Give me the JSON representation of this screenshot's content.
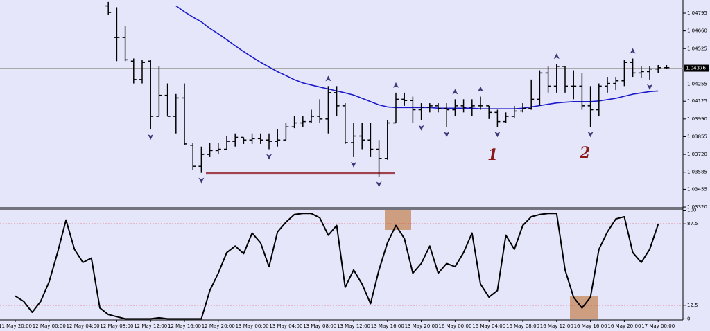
{
  "chart_data": {
    "type": "ohlc",
    "categories": [
      "11 May 20:00",
      null,
      null,
      null,
      "12 May 00:00",
      null,
      null,
      null,
      "12 May 04:00",
      null,
      null,
      null,
      "12 May 08:00",
      null,
      null,
      null,
      "12 May 12:00",
      null,
      null,
      null,
      "12 May 16:00",
      null,
      null,
      null,
      "12 May 20:00",
      null,
      null,
      null,
      "13 May 00:00",
      null,
      null,
      null,
      "13 May 04:00",
      null,
      null,
      null,
      "13 May 08:00",
      null,
      null,
      null,
      "13 May 12:00",
      null,
      null,
      null,
      "13 May 16:00",
      null,
      null,
      null,
      "13 May 20:00",
      null,
      null,
      null,
      "16 May 00:00",
      null,
      null,
      null,
      "16 May 04:00",
      null,
      null,
      null,
      "16 May 08:00",
      null,
      null,
      null,
      "16 May 12:00",
      null,
      null,
      null,
      "16 May 16:00",
      null,
      null,
      null,
      "16 May 20:00",
      null,
      null,
      null,
      "17 May 00:00",
      null
    ],
    "open": [
      null,
      null,
      null,
      null,
      null,
      null,
      null,
      null,
      null,
      null,
      null,
      1.0485,
      1.0461,
      1.0461,
      1.0443,
      1.0429,
      1.0443,
      1.0401,
      1.0417,
      1.0401,
      1.0415,
      1.0379,
      1.0363,
      1.0372,
      1.0375,
      1.0376,
      1.0382,
      1.0385,
      1.0383,
      1.0384,
      1.0383,
      1.0382,
      1.0383,
      1.0393,
      1.0396,
      1.0397,
      1.0401,
      1.0399,
      1.0419,
      1.0409,
      1.0381,
      1.0386,
      1.0383,
      1.0376,
      1.0369,
      1.0396,
      1.0414,
      1.0413,
      1.0406,
      1.0408,
      1.0409,
      1.0407,
      1.0406,
      1.0409,
      1.0408,
      1.0409,
      1.0409,
      1.0404,
      1.0397,
      1.0401,
      1.0405,
      1.0407,
      1.0414,
      1.0434,
      1.0424,
      1.0439,
      1.0424,
      1.0424,
      1.0409,
      1.0406,
      1.0424,
      1.0426,
      1.0428,
      1.0442,
      1.0434,
      1.0435,
      1.0437,
      1.0438
    ],
    "high": [
      null,
      null,
      null,
      null,
      null,
      null,
      null,
      null,
      null,
      null,
      null,
      1.0488,
      1.0484,
      1.047,
      1.0445,
      1.0444,
      1.0444,
      1.0439,
      1.0426,
      1.0418,
      1.0426,
      1.0381,
      1.0378,
      1.0381,
      1.0381,
      1.0386,
      1.0388,
      1.0385,
      1.0388,
      1.0388,
      1.0388,
      1.0391,
      1.0396,
      1.0401,
      1.0401,
      1.0406,
      1.0414,
      1.0424,
      1.0424,
      1.0411,
      1.0396,
      1.0396,
      1.0396,
      1.0383,
      1.0398,
      1.0419,
      1.0419,
      1.0416,
      1.0411,
      1.0411,
      1.0411,
      1.0411,
      1.0414,
      1.0414,
      1.0414,
      1.0416,
      1.0409,
      1.0406,
      1.0404,
      1.0409,
      1.0411,
      1.0429,
      1.0436,
      1.0439,
      1.0441,
      1.0439,
      1.0436,
      1.0434,
      1.0424,
      1.0426,
      1.0431,
      1.0431,
      1.0444,
      1.0445,
      1.0439,
      1.0439,
      1.044,
      1.044
    ],
    "low": [
      null,
      null,
      null,
      null,
      null,
      null,
      null,
      null,
      null,
      null,
      null,
      1.0478,
      1.0443,
      1.0443,
      1.0426,
      1.0426,
      1.0391,
      1.0401,
      1.0401,
      1.0388,
      1.0379,
      1.036,
      1.0358,
      1.037,
      1.0372,
      1.0376,
      1.0378,
      1.038,
      1.038,
      1.038,
      1.0376,
      1.0378,
      1.0383,
      1.0392,
      1.0393,
      1.0396,
      1.0396,
      1.0388,
      1.0401,
      1.038,
      1.037,
      1.0376,
      1.037,
      1.0355,
      1.0368,
      1.0396,
      1.0409,
      1.0396,
      1.0398,
      1.0404,
      1.0404,
      1.0393,
      1.0401,
      1.0404,
      1.0401,
      1.0406,
      1.0399,
      1.0393,
      1.0396,
      1.04,
      1.0404,
      1.0406,
      1.0409,
      1.0419,
      1.0419,
      1.0419,
      1.0414,
      1.0406,
      1.0393,
      1.0401,
      1.0419,
      1.0421,
      1.0424,
      1.0431,
      1.043,
      1.0429,
      1.0434,
      1.0437
    ],
    "close": [
      null,
      null,
      null,
      null,
      null,
      null,
      null,
      null,
      null,
      null,
      null,
      1.048,
      1.0461,
      1.0444,
      1.0429,
      1.0442,
      1.0401,
      1.0417,
      1.0401,
      1.0415,
      1.038,
      1.0363,
      1.0372,
      1.0375,
      1.0376,
      1.0382,
      1.0385,
      1.0383,
      1.0384,
      1.0383,
      1.0382,
      1.0383,
      1.0393,
      1.0396,
      1.0397,
      1.0401,
      1.0399,
      1.0419,
      1.0409,
      1.0381,
      1.0386,
      1.0383,
      1.0376,
      1.0369,
      1.0396,
      1.0414,
      1.0413,
      1.0406,
      1.0408,
      1.0409,
      1.0407,
      1.0406,
      1.0409,
      1.0408,
      1.0409,
      1.0409,
      1.0404,
      1.0397,
      1.0401,
      1.0405,
      1.0407,
      1.0414,
      1.0434,
      1.0424,
      1.0439,
      1.0424,
      1.0424,
      1.0409,
      1.0406,
      1.0424,
      1.0426,
      1.0428,
      1.0442,
      1.0434,
      1.0435,
      1.0437,
      1.0438,
      1.0438
    ],
    "bar_color": "#000000",
    "moving_average": {
      "color": "#1a1ac8",
      "values": [
        null,
        null,
        null,
        null,
        null,
        null,
        null,
        null,
        null,
        null,
        null,
        null,
        null,
        null,
        null,
        null,
        null,
        null,
        null,
        1.04851,
        1.04805,
        1.04765,
        1.04729,
        1.04679,
        1.04638,
        1.04593,
        1.04547,
        1.04502,
        1.04461,
        1.04421,
        1.04385,
        1.0435,
        1.0432,
        1.04289,
        1.04264,
        1.04248,
        1.04233,
        1.04218,
        1.04203,
        1.04188,
        1.04172,
        1.04147,
        1.04122,
        1.04097,
        1.04082,
        1.04077,
        1.04077,
        1.04077,
        1.04077,
        1.04077,
        1.04072,
        1.04072,
        1.04072,
        1.04072,
        1.04072,
        1.04067,
        1.04067,
        1.04067,
        1.04067,
        1.04067,
        1.04072,
        1.04082,
        1.04092,
        1.04102,
        1.04112,
        1.04117,
        1.04122,
        1.04122,
        1.04122,
        1.04127,
        1.04137,
        1.04147,
        1.04163,
        1.04178,
        1.04188,
        1.04198,
        1.04203,
        null
      ]
    },
    "fractal_color": "#3a3a78",
    "fractals_up": [
      null,
      null,
      null,
      null,
      null,
      null,
      null,
      null,
      null,
      null,
      null,
      null,
      null,
      null,
      null,
      null,
      null,
      null,
      null,
      null,
      null,
      null,
      null,
      null,
      null,
      null,
      null,
      null,
      null,
      null,
      null,
      null,
      null,
      null,
      null,
      null,
      null,
      1.0424,
      null,
      null,
      null,
      null,
      null,
      null,
      null,
      1.0419,
      null,
      null,
      null,
      null,
      null,
      null,
      1.0414,
      null,
      null,
      1.0416,
      null,
      null,
      null,
      null,
      null,
      null,
      null,
      null,
      1.0441,
      null,
      null,
      null,
      null,
      null,
      null,
      null,
      null,
      1.0445,
      null,
      null,
      null,
      null
    ],
    "fractals_down": [
      null,
      null,
      null,
      null,
      null,
      null,
      null,
      null,
      null,
      null,
      null,
      null,
      null,
      null,
      null,
      null,
      1.0391,
      null,
      null,
      null,
      null,
      null,
      1.0358,
      null,
      null,
      null,
      null,
      null,
      null,
      null,
      1.0376,
      null,
      null,
      null,
      null,
      null,
      null,
      null,
      null,
      null,
      1.037,
      null,
      null,
      1.0355,
      null,
      null,
      null,
      null,
      1.0398,
      null,
      null,
      1.0393,
      null,
      null,
      null,
      null,
      null,
      1.0393,
      null,
      null,
      null,
      null,
      null,
      null,
      null,
      null,
      null,
      null,
      1.0393,
      null,
      null,
      null,
      null,
      null,
      null,
      1.0429,
      null,
      null
    ],
    "support_level": 1.0358,
    "support_color": "#a0434f",
    "current_price": 1.04376,
    "ylim": [
      1.03315,
      1.04895
    ],
    "yticks": [
      1.04795,
      {
        "value": 1.0466,
        "label": "1.04660"
      },
      1.04525,
      1.04255,
      1.04125,
      {
        "value": 1.0399,
        "label": "1.03990"
      },
      1.03855,
      {
        "value": 1.0372,
        "label": "1.03720"
      },
      1.03585,
      1.03455,
      {
        "value": 1.0332,
        "label": "1.03320"
      }
    ],
    "annotations": [
      "1",
      "2"
    ],
    "indicator": {
      "type": "line",
      "color": "#000000",
      "values": [
        21,
        16,
        6,
        16,
        34,
        61,
        91,
        64,
        52,
        56,
        10,
        4,
        2,
        0,
        0,
        0,
        0,
        1,
        0,
        0,
        0,
        0,
        0,
        26,
        42,
        61,
        67,
        60,
        79,
        70,
        48,
        80,
        89,
        96,
        97,
        97,
        93,
        77,
        86,
        29,
        45,
        32,
        14,
        45,
        70,
        86,
        74,
        42,
        51,
        67,
        42,
        51,
        48,
        61,
        79,
        32,
        20,
        26,
        77,
        64,
        86,
        94,
        96,
        97,
        97,
        45,
        20,
        10,
        20,
        64,
        80,
        92,
        94,
        61,
        52,
        64,
        87,
        null
      ],
      "ylim": [
        -1,
        101
      ],
      "yticks": [
        100,
        87.5,
        12.5,
        0
      ],
      "levels": [
        87.5,
        12.5
      ],
      "level_color": "#e03030"
    }
  }
}
